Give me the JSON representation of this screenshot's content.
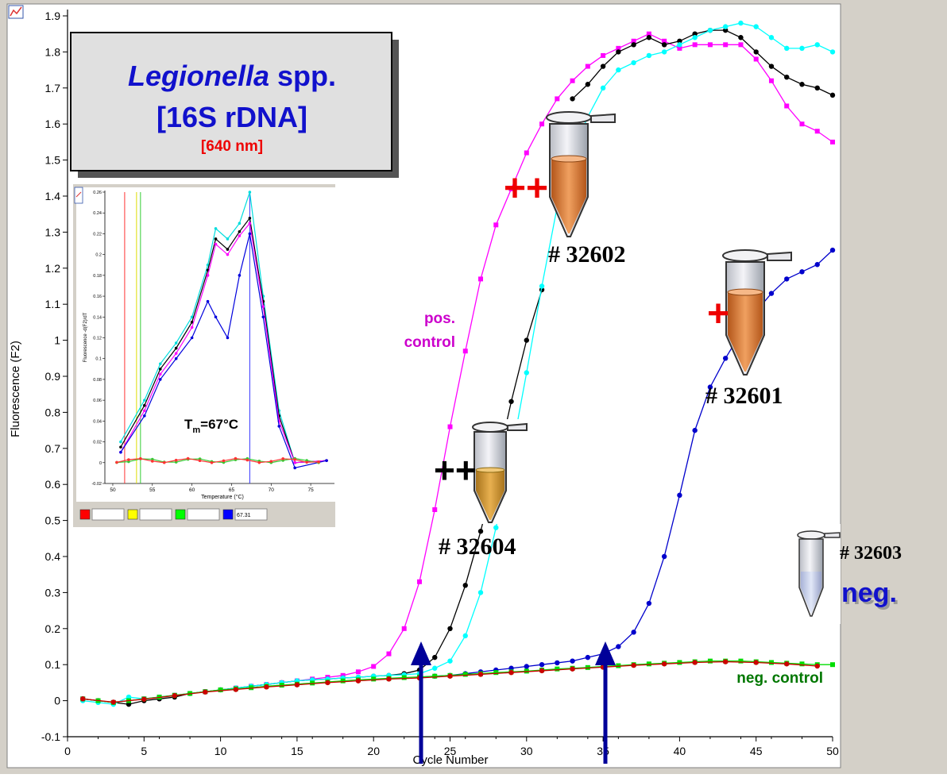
{
  "chart_data": {
    "type": "line",
    "xlabel": "Cycle Number",
    "ylabel": "Fluorescence (F2)",
    "xlim": [
      0,
      50
    ],
    "ylim": [
      -0.1,
      1.9
    ],
    "xticks": [
      0,
      5,
      10,
      15,
      20,
      25,
      30,
      35,
      40,
      45,
      50
    ],
    "yticks": [
      -0.1,
      0,
      0.1,
      0.2,
      0.3,
      0.4,
      0.5,
      0.6,
      0.7,
      0.8,
      0.9,
      1,
      1.1,
      1.2,
      1.3,
      1.4,
      1.5,
      1.6,
      1.7,
      1.8,
      1.9
    ],
    "grid": false,
    "series": [
      {
        "color": "#ff00ff",
        "marker": "square",
        "x": [
          1,
          2,
          3,
          4,
          5,
          6,
          7,
          8,
          9,
          10,
          11,
          12,
          13,
          14,
          15,
          16,
          17,
          18,
          19,
          20,
          21,
          22,
          23,
          24,
          25,
          26,
          27,
          28,
          29,
          30,
          31,
          32,
          33,
          34,
          35,
          36,
          37,
          38,
          39,
          40,
          41,
          42,
          43,
          44,
          45,
          46,
          47,
          48,
          49,
          50
        ],
        "y": [
          0.005,
          0,
          -0.005,
          0,
          0.005,
          0.01,
          0.015,
          0.02,
          0.025,
          0.03,
          0.035,
          0.04,
          0.045,
          0.05,
          0.055,
          0.06,
          0.065,
          0.07,
          0.08,
          0.095,
          0.13,
          0.2,
          0.33,
          0.53,
          0.76,
          0.97,
          1.17,
          1.32,
          1.42,
          1.52,
          1.6,
          1.67,
          1.72,
          1.76,
          1.79,
          1.81,
          1.83,
          1.85,
          1.83,
          1.81,
          1.82,
          1.82,
          1.82,
          1.82,
          1.78,
          1.72,
          1.65,
          1.6,
          1.58,
          1.55
        ]
      },
      {
        "color": "#000000",
        "marker": "circle",
        "x": [
          1,
          2,
          3,
          4,
          5,
          6,
          7,
          8,
          9,
          10,
          11,
          12,
          13,
          14,
          15,
          16,
          17,
          18,
          19,
          20,
          21,
          22,
          23,
          24,
          25,
          26,
          27,
          28,
          29,
          30,
          31,
          33,
          34,
          35,
          36,
          37,
          38,
          39,
          40,
          41,
          42,
          43,
          44,
          45,
          46,
          47,
          48,
          49,
          50
        ],
        "y": [
          0.005,
          0,
          -0.005,
          -0.01,
          0,
          0.005,
          0.01,
          0.02,
          0.025,
          0.03,
          0.035,
          0.04,
          0.045,
          0.05,
          0.055,
          0.058,
          0.06,
          0.063,
          0.065,
          0.068,
          0.07,
          0.075,
          0.085,
          0.12,
          0.2,
          0.32,
          0.47,
          0.64,
          0.83,
          1.0,
          1.14,
          1.67,
          1.71,
          1.76,
          1.8,
          1.82,
          1.84,
          1.82,
          1.83,
          1.85,
          1.86,
          1.86,
          1.84,
          1.8,
          1.76,
          1.73,
          1.71,
          1.7,
          1.68
        ]
      },
      {
        "color": "#00ffff",
        "marker": "circle",
        "x": [
          1,
          2,
          3,
          4,
          5,
          6,
          7,
          8,
          9,
          10,
          11,
          12,
          13,
          14,
          15,
          16,
          17,
          18,
          19,
          20,
          21,
          22,
          23,
          24,
          25,
          26,
          27,
          28,
          29,
          30,
          31,
          32,
          33,
          34,
          35,
          36,
          37,
          38,
          39,
          40,
          41,
          42,
          43,
          44,
          45,
          46,
          47,
          48,
          49,
          50
        ],
        "y": [
          0,
          -0.005,
          -0.01,
          0.01,
          0.005,
          0.01,
          0.015,
          0.02,
          0.025,
          0.03,
          0.035,
          0.04,
          0.045,
          0.05,
          0.055,
          0.058,
          0.06,
          0.063,
          0.065,
          0.068,
          0.07,
          0.072,
          0.075,
          0.09,
          0.11,
          0.18,
          0.3,
          0.48,
          0.68,
          0.91,
          1.15,
          1.37,
          1.52,
          1.62,
          1.7,
          1.75,
          1.77,
          1.79,
          1.8,
          1.82,
          1.84,
          1.86,
          1.87,
          1.88,
          1.87,
          1.84,
          1.81,
          1.81,
          1.82,
          1.8
        ]
      },
      {
        "color": "#0000cc",
        "marker": "circle",
        "x": [
          23,
          24,
          25,
          26,
          27,
          28,
          29,
          30,
          31,
          32,
          33,
          34,
          35,
          36,
          37,
          38,
          39,
          40,
          41,
          42,
          43,
          44,
          45,
          46,
          47,
          48,
          49,
          50
        ],
        "y": [
          0.065,
          0.068,
          0.07,
          0.075,
          0.08,
          0.085,
          0.09,
          0.095,
          0.1,
          0.105,
          0.11,
          0.12,
          0.13,
          0.15,
          0.19,
          0.27,
          0.4,
          0.57,
          0.75,
          0.87,
          0.95,
          1.02,
          1.08,
          1.13,
          1.17,
          1.19,
          1.21,
          1.25
        ]
      },
      {
        "color": "#00dd00",
        "marker": "square",
        "x": [
          1,
          2,
          3,
          4,
          5,
          6,
          7,
          8,
          9,
          10,
          11,
          12,
          13,
          14,
          15,
          16,
          17,
          18,
          19,
          20,
          21,
          22,
          23,
          24,
          25,
          26,
          27,
          28,
          29,
          30,
          31,
          32,
          33,
          34,
          35,
          36,
          37,
          38,
          39,
          40,
          41,
          42,
          43,
          44,
          45,
          46,
          47,
          48,
          49,
          50
        ],
        "y": [
          0.005,
          0,
          -0.005,
          0,
          0.005,
          0.01,
          0.015,
          0.02,
          0.025,
          0.03,
          0.033,
          0.036,
          0.04,
          0.043,
          0.046,
          0.049,
          0.052,
          0.055,
          0.058,
          0.06,
          0.062,
          0.064,
          0.066,
          0.068,
          0.07,
          0.073,
          0.075,
          0.078,
          0.08,
          0.082,
          0.085,
          0.088,
          0.09,
          0.092,
          0.095,
          0.097,
          0.1,
          0.102,
          0.104,
          0.106,
          0.108,
          0.11,
          0.11,
          0.11,
          0.108,
          0.106,
          0.104,
          0.102,
          0.1,
          0.1
        ]
      },
      {
        "color": "#cc0000",
        "marker": "circle",
        "x": [
          1,
          3,
          5,
          7,
          9,
          11,
          13,
          15,
          17,
          19,
          21,
          23,
          25,
          27,
          29,
          31,
          33,
          35,
          37,
          39,
          41,
          43,
          45,
          47,
          49
        ],
        "y": [
          0.005,
          -0.004,
          0.004,
          0.014,
          0.024,
          0.031,
          0.038,
          0.044,
          0.05,
          0.055,
          0.06,
          0.063,
          0.068,
          0.073,
          0.078,
          0.083,
          0.088,
          0.093,
          0.098,
          0.102,
          0.106,
          0.108,
          0.106,
          0.102,
          0.096
        ]
      }
    ]
  },
  "inset": {
    "xlabel": "Temperature (°C)",
    "ylabel": "Fluorescence -d(F2)/dT",
    "xlim": [
      49,
      78
    ],
    "ylim": [
      -0.02,
      0.26
    ],
    "xticks": [
      50,
      55,
      60,
      65,
      70,
      75
    ],
    "yticks": [
      -0.02,
      0,
      0.02,
      0.04,
      0.06,
      0.08,
      0.1,
      0.12,
      0.14,
      0.16,
      0.18,
      0.2,
      0.22,
      0.24,
      0.26
    ],
    "vlines": [
      {
        "x": 51.5,
        "color": "#ff3333"
      },
      {
        "x": 53.0,
        "color": "#dddd00"
      },
      {
        "x": 53.5,
        "color": "#33cc33"
      },
      {
        "x": 67.3,
        "color": "#3333ff"
      }
    ],
    "curves": [
      {
        "color": "#00dddd",
        "y": [
          0.02,
          0.06,
          0.095,
          0.115,
          0.14,
          0.19,
          0.225,
          0.215,
          0.23,
          0.26,
          0.16,
          0.05,
          0,
          0.002
        ]
      },
      {
        "color": "#000000",
        "y": [
          0.015,
          0.055,
          0.09,
          0.11,
          0.135,
          0.185,
          0.215,
          0.205,
          0.222,
          0.235,
          0.155,
          0.045,
          0,
          0.002
        ]
      },
      {
        "color": "#ff00ff",
        "y": [
          0.01,
          0.05,
          0.085,
          0.105,
          0.13,
          0.18,
          0.21,
          0.2,
          0.218,
          0.23,
          0.15,
          0.04,
          0,
          0.002
        ]
      },
      {
        "color": "#0000dd",
        "y": [
          0.01,
          0.045,
          0.08,
          0.1,
          0.12,
          0.155,
          0.14,
          0.12,
          0.18,
          0.22,
          0.14,
          0.035,
          -0.005,
          0.002
        ]
      },
      {
        "color": "#33cc33",
        "flat": true
      },
      {
        "color": "#ff3333",
        "flat": true
      }
    ],
    "tm_label": "T",
    "tm_sub": "m",
    "tm_rest": "=67°C",
    "fields": [
      {
        "color": "#ff0000",
        "value": ""
      },
      {
        "color": "#ffff00",
        "value": ""
      },
      {
        "color": "#00ff00",
        "value": ""
      },
      {
        "color": "#0000ff",
        "value": "67.31"
      }
    ]
  },
  "title_box": {
    "title_italic": "Legionella",
    "title_rest": " spp.",
    "subtitle": "[16S rDNA]",
    "wavelength": "[640 nm]"
  },
  "annotations": {
    "pos_control_1": "pos.",
    "pos_control_2": "control",
    "neg_control": "neg. control",
    "sample_32602": "# 32602",
    "sample_32601": "# 32601",
    "sample_32604": "# 32604",
    "sample_32603": "# 32603",
    "neg": "neg.",
    "plus_plus_red": "++",
    "plus_red": "+",
    "plus_plus_black": "++"
  },
  "colors": {
    "background": "#d4d0c8",
    "plot_background": "#ffffff",
    "arrows": "#000099"
  }
}
